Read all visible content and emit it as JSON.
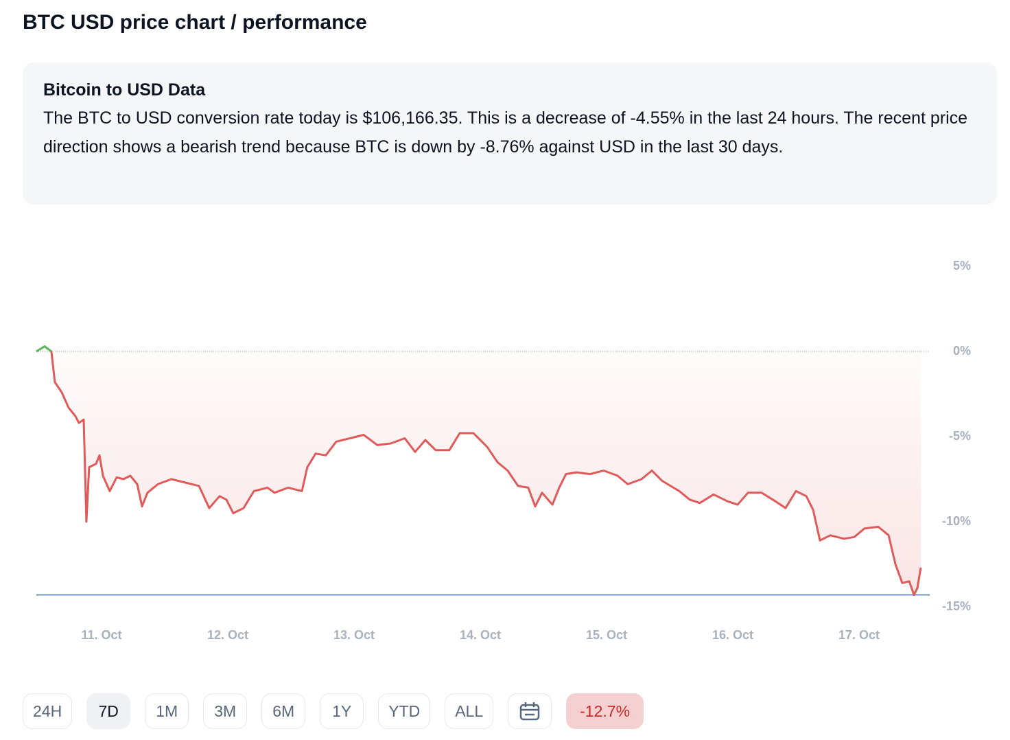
{
  "header": {
    "title": "BTC USD price chart / performance"
  },
  "info": {
    "title": "Bitcoin to USD Data",
    "text": "The BTC to USD conversion rate today is $106,166.35. This is a decrease of -4.55% in the last 24 hours. The recent price direction shows a bearish trend because BTC is down by -8.76% against USD in the last 30 days."
  },
  "chart_data": {
    "type": "line",
    "x": [
      10.484,
      10.549,
      10.603,
      10.63,
      10.685,
      10.739,
      10.793,
      10.821,
      10.859,
      10.88,
      10.902,
      10.957,
      10.984,
      11.011,
      11.065,
      11.12,
      11.174,
      11.228,
      11.283,
      11.321,
      11.364,
      11.446,
      11.554,
      11.663,
      11.772,
      11.853,
      11.935,
      11.989,
      12.043,
      12.125,
      12.207,
      12.315,
      12.37,
      12.478,
      12.587,
      12.63,
      12.696,
      12.777,
      12.859,
      12.967,
      13.076,
      13.185,
      13.293,
      13.402,
      13.484,
      13.565,
      13.647,
      13.755,
      13.837,
      13.946,
      14.054,
      14.136,
      14.217,
      14.299,
      14.38,
      14.435,
      14.489,
      14.571,
      14.625,
      14.679,
      14.761,
      14.87,
      14.978,
      15.087,
      15.168,
      15.277,
      15.359,
      15.44,
      15.576,
      15.658,
      15.739,
      15.848,
      15.957,
      16.038,
      16.12,
      16.228,
      16.337,
      16.418,
      16.5,
      16.582,
      16.636,
      16.69,
      16.772,
      16.88,
      16.962,
      17.043,
      17.152,
      17.234,
      17.288,
      17.342,
      17.397,
      17.435,
      17.462,
      17.489
    ],
    "series": [
      {
        "name": "BTC USD",
        "color": "#e05a5a",
        "up_color": "#5cb85c",
        "values": [
          0,
          0.3,
          0,
          -1.8,
          -2.4,
          -3.3,
          -3.8,
          -4.2,
          -4.0,
          -10.0,
          -6.8,
          -6.6,
          -6.1,
          -7.3,
          -8.2,
          -7.4,
          -7.5,
          -7.3,
          -7.8,
          -9.1,
          -8.3,
          -7.8,
          -7.5,
          -7.7,
          -7.9,
          -9.2,
          -8.5,
          -8.7,
          -9.5,
          -9.2,
          -8.2,
          -8.0,
          -8.3,
          -8.0,
          -8.2,
          -6.8,
          -6.0,
          -6.1,
          -5.3,
          -5.1,
          -4.9,
          -5.5,
          -5.4,
          -5.1,
          -5.9,
          -5.2,
          -5.8,
          -5.8,
          -4.8,
          -4.8,
          -5.6,
          -6.5,
          -7.0,
          -7.9,
          -8.0,
          -9.1,
          -8.3,
          -9.0,
          -8.0,
          -7.2,
          -7.1,
          -7.2,
          -7.0,
          -7.3,
          -7.8,
          -7.5,
          -7.0,
          -7.6,
          -8.2,
          -8.7,
          -8.9,
          -8.4,
          -8.8,
          -9.0,
          -8.3,
          -8.3,
          -8.8,
          -9.2,
          -8.2,
          -8.5,
          -9.3,
          -11.1,
          -10.8,
          -11.0,
          -10.9,
          -10.4,
          -10.3,
          -10.8,
          -12.5,
          -13.6,
          -13.5,
          -14.3,
          -13.9,
          -12.7
        ]
      }
    ],
    "xlim": [
      10.484,
      17.489
    ],
    "xticks": [
      {
        "value": 11,
        "label": "11. Oct"
      },
      {
        "value": 12,
        "label": "12. Oct"
      },
      {
        "value": 13,
        "label": "13. Oct"
      },
      {
        "value": 14,
        "label": "14. Oct"
      },
      {
        "value": 15,
        "label": "15. Oct"
      },
      {
        "value": 16,
        "label": "16. Oct"
      },
      {
        "value": 17,
        "label": "17. Oct"
      }
    ],
    "ylim": [
      -15,
      5
    ],
    "yticks": [
      {
        "value": 5,
        "label": "5%"
      },
      {
        "value": 0,
        "label": "0%"
      },
      {
        "value": -5,
        "label": "-5%"
      },
      {
        "value": -10,
        "label": "-10%"
      },
      {
        "value": -15,
        "label": "-15%"
      }
    ]
  },
  "controls": {
    "ranges": [
      "24H",
      "7D",
      "1M",
      "3M",
      "6M",
      "1Y",
      "YTD",
      "ALL"
    ],
    "selected": "7D",
    "change": "-12.7%"
  }
}
